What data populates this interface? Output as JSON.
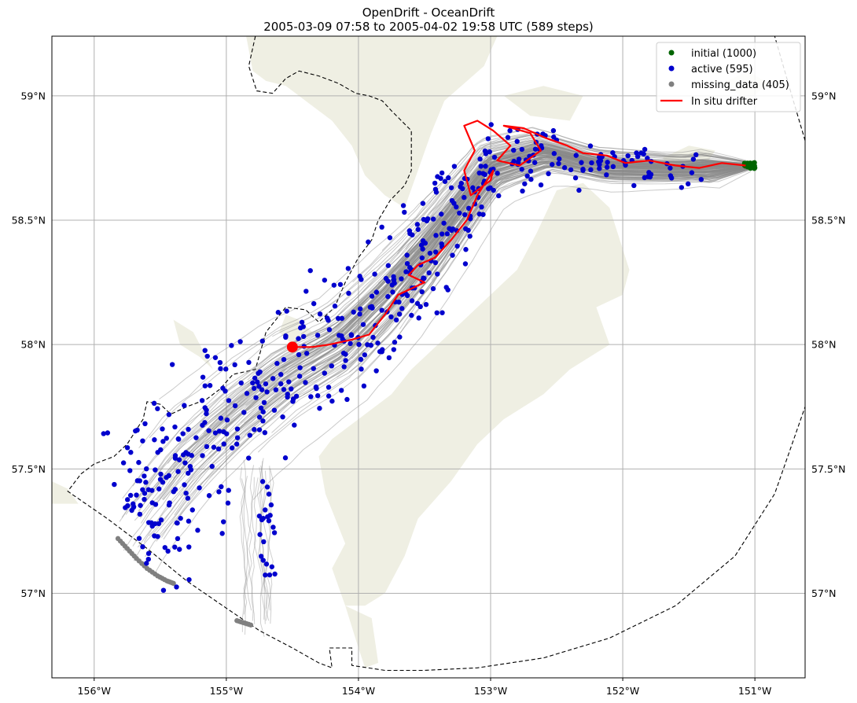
{
  "title": {
    "line1": "OpenDrift - OceanDrift",
    "line2": "2005-03-09 07:58 to 2005-04-02 19:58 UTC (589 steps)"
  },
  "map": {
    "lon_range": [
      -156.32,
      -150.62
    ],
    "lat_range": [
      56.66,
      59.24
    ],
    "lon_ticks": [
      {
        "lon": -156,
        "label": "156°W"
      },
      {
        "lon": -155,
        "label": "155°W"
      },
      {
        "lon": -154,
        "label": "154°W"
      },
      {
        "lon": -153,
        "label": "153°W"
      },
      {
        "lon": -152,
        "label": "152°W"
      },
      {
        "lon": -151,
        "label": "151°W"
      }
    ],
    "lat_ticks": [
      {
        "lat": 59.0,
        "label": "59°N"
      },
      {
        "lat": 58.5,
        "label": "58.5°N"
      },
      {
        "lat": 58.0,
        "label": "58°N"
      },
      {
        "lat": 57.5,
        "label": "57.5°N"
      },
      {
        "lat": 57.0,
        "label": "57°N"
      }
    ],
    "gridlines": true,
    "land_color": "#efefe3",
    "trajectory_color": "#8a8a8a"
  },
  "legend": {
    "placement": "top-right",
    "entries": [
      {
        "label": "initial (1000)",
        "color": "#006400",
        "kind": "marker"
      },
      {
        "label": "active (595)",
        "color": "#0000cd",
        "kind": "marker"
      },
      {
        "label": "missing_data (405)",
        "color": "#808080",
        "kind": "marker"
      },
      {
        "label": "In situ drifter",
        "color": "#ff0000",
        "kind": "line"
      }
    ]
  },
  "drifter_track": [
    [
      -151.07,
      58.72
    ],
    [
      -151.25,
      58.73
    ],
    [
      -151.42,
      58.71
    ],
    [
      -151.6,
      58.72
    ],
    [
      -151.8,
      58.74
    ],
    [
      -151.98,
      58.73
    ],
    [
      -152.12,
      58.76
    ],
    [
      -152.3,
      58.77
    ],
    [
      -152.42,
      58.8
    ],
    [
      -152.58,
      58.83
    ],
    [
      -152.75,
      58.87
    ],
    [
      -152.9,
      58.88
    ],
    [
      -152.7,
      58.85
    ],
    [
      -152.62,
      58.78
    ],
    [
      -152.78,
      58.72
    ],
    [
      -152.95,
      58.74
    ],
    [
      -152.85,
      58.8
    ],
    [
      -152.98,
      58.86
    ],
    [
      -153.1,
      58.9
    ],
    [
      -153.2,
      58.88
    ],
    [
      -153.12,
      58.78
    ],
    [
      -153.2,
      58.7
    ],
    [
      -153.15,
      58.6
    ],
    [
      -153.0,
      58.66
    ],
    [
      -152.98,
      58.7
    ],
    [
      -153.1,
      58.6
    ],
    [
      -153.18,
      58.5
    ],
    [
      -153.3,
      58.42
    ],
    [
      -153.42,
      58.35
    ],
    [
      -153.55,
      58.32
    ],
    [
      -153.62,
      58.28
    ],
    [
      -153.5,
      58.25
    ],
    [
      -153.7,
      58.2
    ],
    [
      -153.8,
      58.12
    ],
    [
      -153.92,
      58.04
    ],
    [
      -154.05,
      58.02
    ],
    [
      -154.22,
      58.0
    ],
    [
      -154.35,
      57.99
    ],
    [
      -154.5,
      57.99
    ]
  ],
  "drifter_end": [
    -154.5,
    57.99
  ],
  "initial_position": [
    -151.04,
    58.72
  ],
  "cloud_axis": [
    [
      -151.05,
      58.72
    ],
    [
      -151.6,
      58.71
    ],
    [
      -152.15,
      58.72
    ],
    [
      -152.6,
      58.78
    ],
    [
      -153.0,
      58.72
    ],
    [
      -153.25,
      58.55
    ],
    [
      -153.5,
      58.38
    ],
    [
      -153.8,
      58.2
    ],
    [
      -154.15,
      58.02
    ],
    [
      -154.55,
      57.9
    ],
    [
      -154.95,
      57.73
    ],
    [
      -155.3,
      57.56
    ],
    [
      -155.6,
      57.36
    ],
    [
      -155.82,
      57.2
    ]
  ],
  "stranded_tail": [
    [
      -155.82,
      57.22
    ],
    [
      -155.75,
      57.18
    ],
    [
      -155.68,
      57.14
    ],
    [
      -155.6,
      57.1
    ],
    [
      -155.52,
      57.07
    ],
    [
      -155.45,
      57.05
    ],
    [
      -155.4,
      57.04
    ],
    [
      -154.92,
      56.89
    ],
    [
      -154.86,
      56.88
    ],
    [
      -154.8,
      56.87
    ]
  ]
}
